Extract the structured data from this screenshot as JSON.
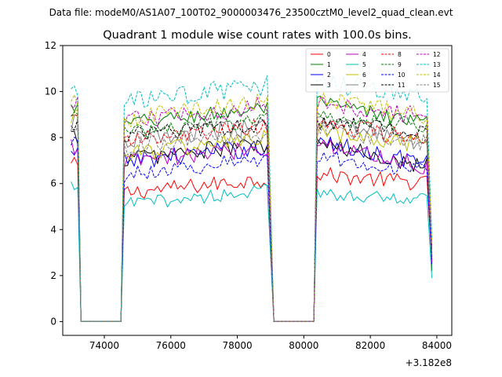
{
  "chart_data": {
    "type": "line",
    "suptitle": "Data file: modeM0/AS1A07_100T02_9000003476_23500cztM0_level2_quad_clean.evt",
    "title": "Quadrant 1 module wise count rates with 100.0s bins.",
    "xlabel": "",
    "ylabel": "",
    "x_offset_label": "+3.182e8",
    "xlim": [
      72750,
      84450
    ],
    "ylim": [
      -0.6,
      12
    ],
    "xticks": [
      74000,
      76000,
      78000,
      80000,
      82000,
      84000
    ],
    "xtick_labels": [
      "74000",
      "76000",
      "78000",
      "80000",
      "82000",
      "84000"
    ],
    "yticks": [
      0,
      2,
      4,
      6,
      8,
      10,
      12
    ],
    "ytick_labels": [
      "0",
      "2",
      "4",
      "6",
      "8",
      "10",
      "12"
    ],
    "legend_position": "upper right",
    "segments": [
      {
        "t_start": 73000,
        "t_end": 73200,
        "kind": "on"
      },
      {
        "t_start": 73300,
        "t_end": 74500,
        "kind": "off"
      },
      {
        "t_start": 74600,
        "t_end": 78950,
        "kind": "on"
      },
      {
        "t_start": 79100,
        "t_end": 80300,
        "kind": "off"
      },
      {
        "t_start": 80400,
        "t_end": 83750,
        "kind": "on"
      }
    ],
    "bin_size": 100,
    "end_time": 83850,
    "series": [
      {
        "name": "0",
        "color": "#ff0000",
        "dash": false,
        "levels": [
          6.8,
          5.6,
          6.4,
          6.0
        ],
        "trend": 0.6,
        "noise": 0.35,
        "end": 2.6
      },
      {
        "name": "1",
        "color": "#008000",
        "dash": false,
        "levels": [
          9.3,
          8.6,
          9.5,
          8.6
        ],
        "trend": 0.7,
        "noise": 0.35,
        "end": 2.2
      },
      {
        "name": "2",
        "color": "#0000ff",
        "dash": false,
        "levels": [
          7.2,
          7.0,
          7.8,
          6.9
        ],
        "trend": 0.6,
        "noise": 0.4,
        "end": 2.5
      },
      {
        "name": "3",
        "color": "#000000",
        "dash": false,
        "levels": [
          8.0,
          7.1,
          7.7,
          6.8
        ],
        "trend": 0.6,
        "noise": 0.4,
        "end": 2.8
      },
      {
        "name": "4",
        "color": "#bf00bf",
        "dash": false,
        "levels": [
          7.6,
          6.9,
          7.8,
          6.7
        ],
        "trend": 0.7,
        "noise": 0.4,
        "end": 2.6
      },
      {
        "name": "5",
        "color": "#00bfbf",
        "dash": false,
        "levels": [
          5.8,
          5.1,
          5.6,
          5.3
        ],
        "trend": 0.6,
        "noise": 0.3,
        "end": 1.9
      },
      {
        "name": "6",
        "color": "#bfbf00",
        "dash": false,
        "levels": [
          9.0,
          7.3,
          8.2,
          7.6
        ],
        "trend": 0.7,
        "noise": 0.4,
        "end": 2.8
      },
      {
        "name": "7",
        "color": "#808080",
        "dash": false,
        "levels": [
          8.6,
          7.9,
          8.7,
          7.7
        ],
        "trend": 0.6,
        "noise": 0.4,
        "end": 2.9
      },
      {
        "name": "8",
        "color": "#ff0000",
        "dash": true,
        "levels": [
          9.2,
          7.8,
          8.6,
          7.9
        ],
        "trend": 0.7,
        "noise": 0.4,
        "end": 3.1
      },
      {
        "name": "9",
        "color": "#008000",
        "dash": true,
        "levels": [
          9.1,
          8.2,
          9.0,
          8.5
        ],
        "trend": 0.6,
        "noise": 0.35,
        "end": 3.3
      },
      {
        "name": "10",
        "color": "#0000ff",
        "dash": true,
        "levels": [
          7.8,
          6.4,
          7.2,
          6.5
        ],
        "trend": 0.7,
        "noise": 0.35,
        "end": 2.7
      },
      {
        "name": "11",
        "color": "#000000",
        "dash": true,
        "levels": [
          8.6,
          8.1,
          8.7,
          8.3
        ],
        "trend": 0.5,
        "noise": 0.35,
        "end": 3.0
      },
      {
        "name": "12",
        "color": "#bf00bf",
        "dash": true,
        "levels": [
          9.4,
          8.7,
          9.5,
          8.9
        ],
        "trend": 0.7,
        "noise": 0.4,
        "end": 3.2
      },
      {
        "name": "13",
        "color": "#00bfbf",
        "dash": true,
        "levels": [
          10.1,
          9.5,
          10.4,
          9.7
        ],
        "trend": 0.8,
        "noise": 0.45,
        "end": 3.6
      },
      {
        "name": "14",
        "color": "#bfbf00",
        "dash": true,
        "levels": [
          9.5,
          8.8,
          9.7,
          8.9
        ],
        "trend": 0.8,
        "noise": 0.4,
        "end": 3.4
      },
      {
        "name": "15",
        "color": "#808080",
        "dash": true,
        "levels": [
          8.4,
          7.6,
          8.4,
          7.8
        ],
        "trend": 0.6,
        "noise": 0.4,
        "end": 3.0
      }
    ]
  }
}
